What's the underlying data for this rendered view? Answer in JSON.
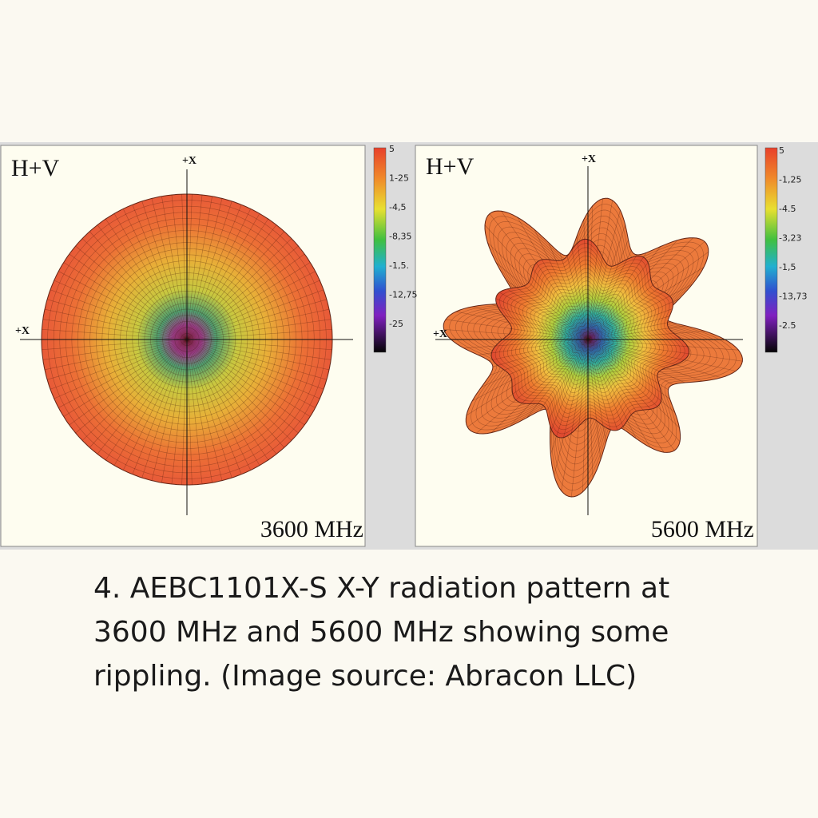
{
  "panels": [
    {
      "mode": "H+V",
      "axis_top": "+X",
      "axis_left": "+X",
      "frequency": "3600 MHz",
      "colorbar": [
        "5",
        "1-25",
        "-4,5",
        "-8,35",
        "-1,5.",
        "-12,75",
        "-25"
      ]
    },
    {
      "mode": "H+V",
      "axis_top": "+X",
      "axis_left": "+X",
      "frequency": "5600 MHz",
      "colorbar": [
        "5",
        "-1,25",
        "-4.5",
        "-3,23",
        "-1,5",
        "-13,73",
        "-2.5"
      ]
    }
  ],
  "caption": {
    "lines": [
      "4.  AEBC1101X-S X-Y radiation pattern at",
      "3600 MHz and 5600 MHz showing some",
      "rippling. (Image source: Abracon LLC)"
    ]
  }
}
